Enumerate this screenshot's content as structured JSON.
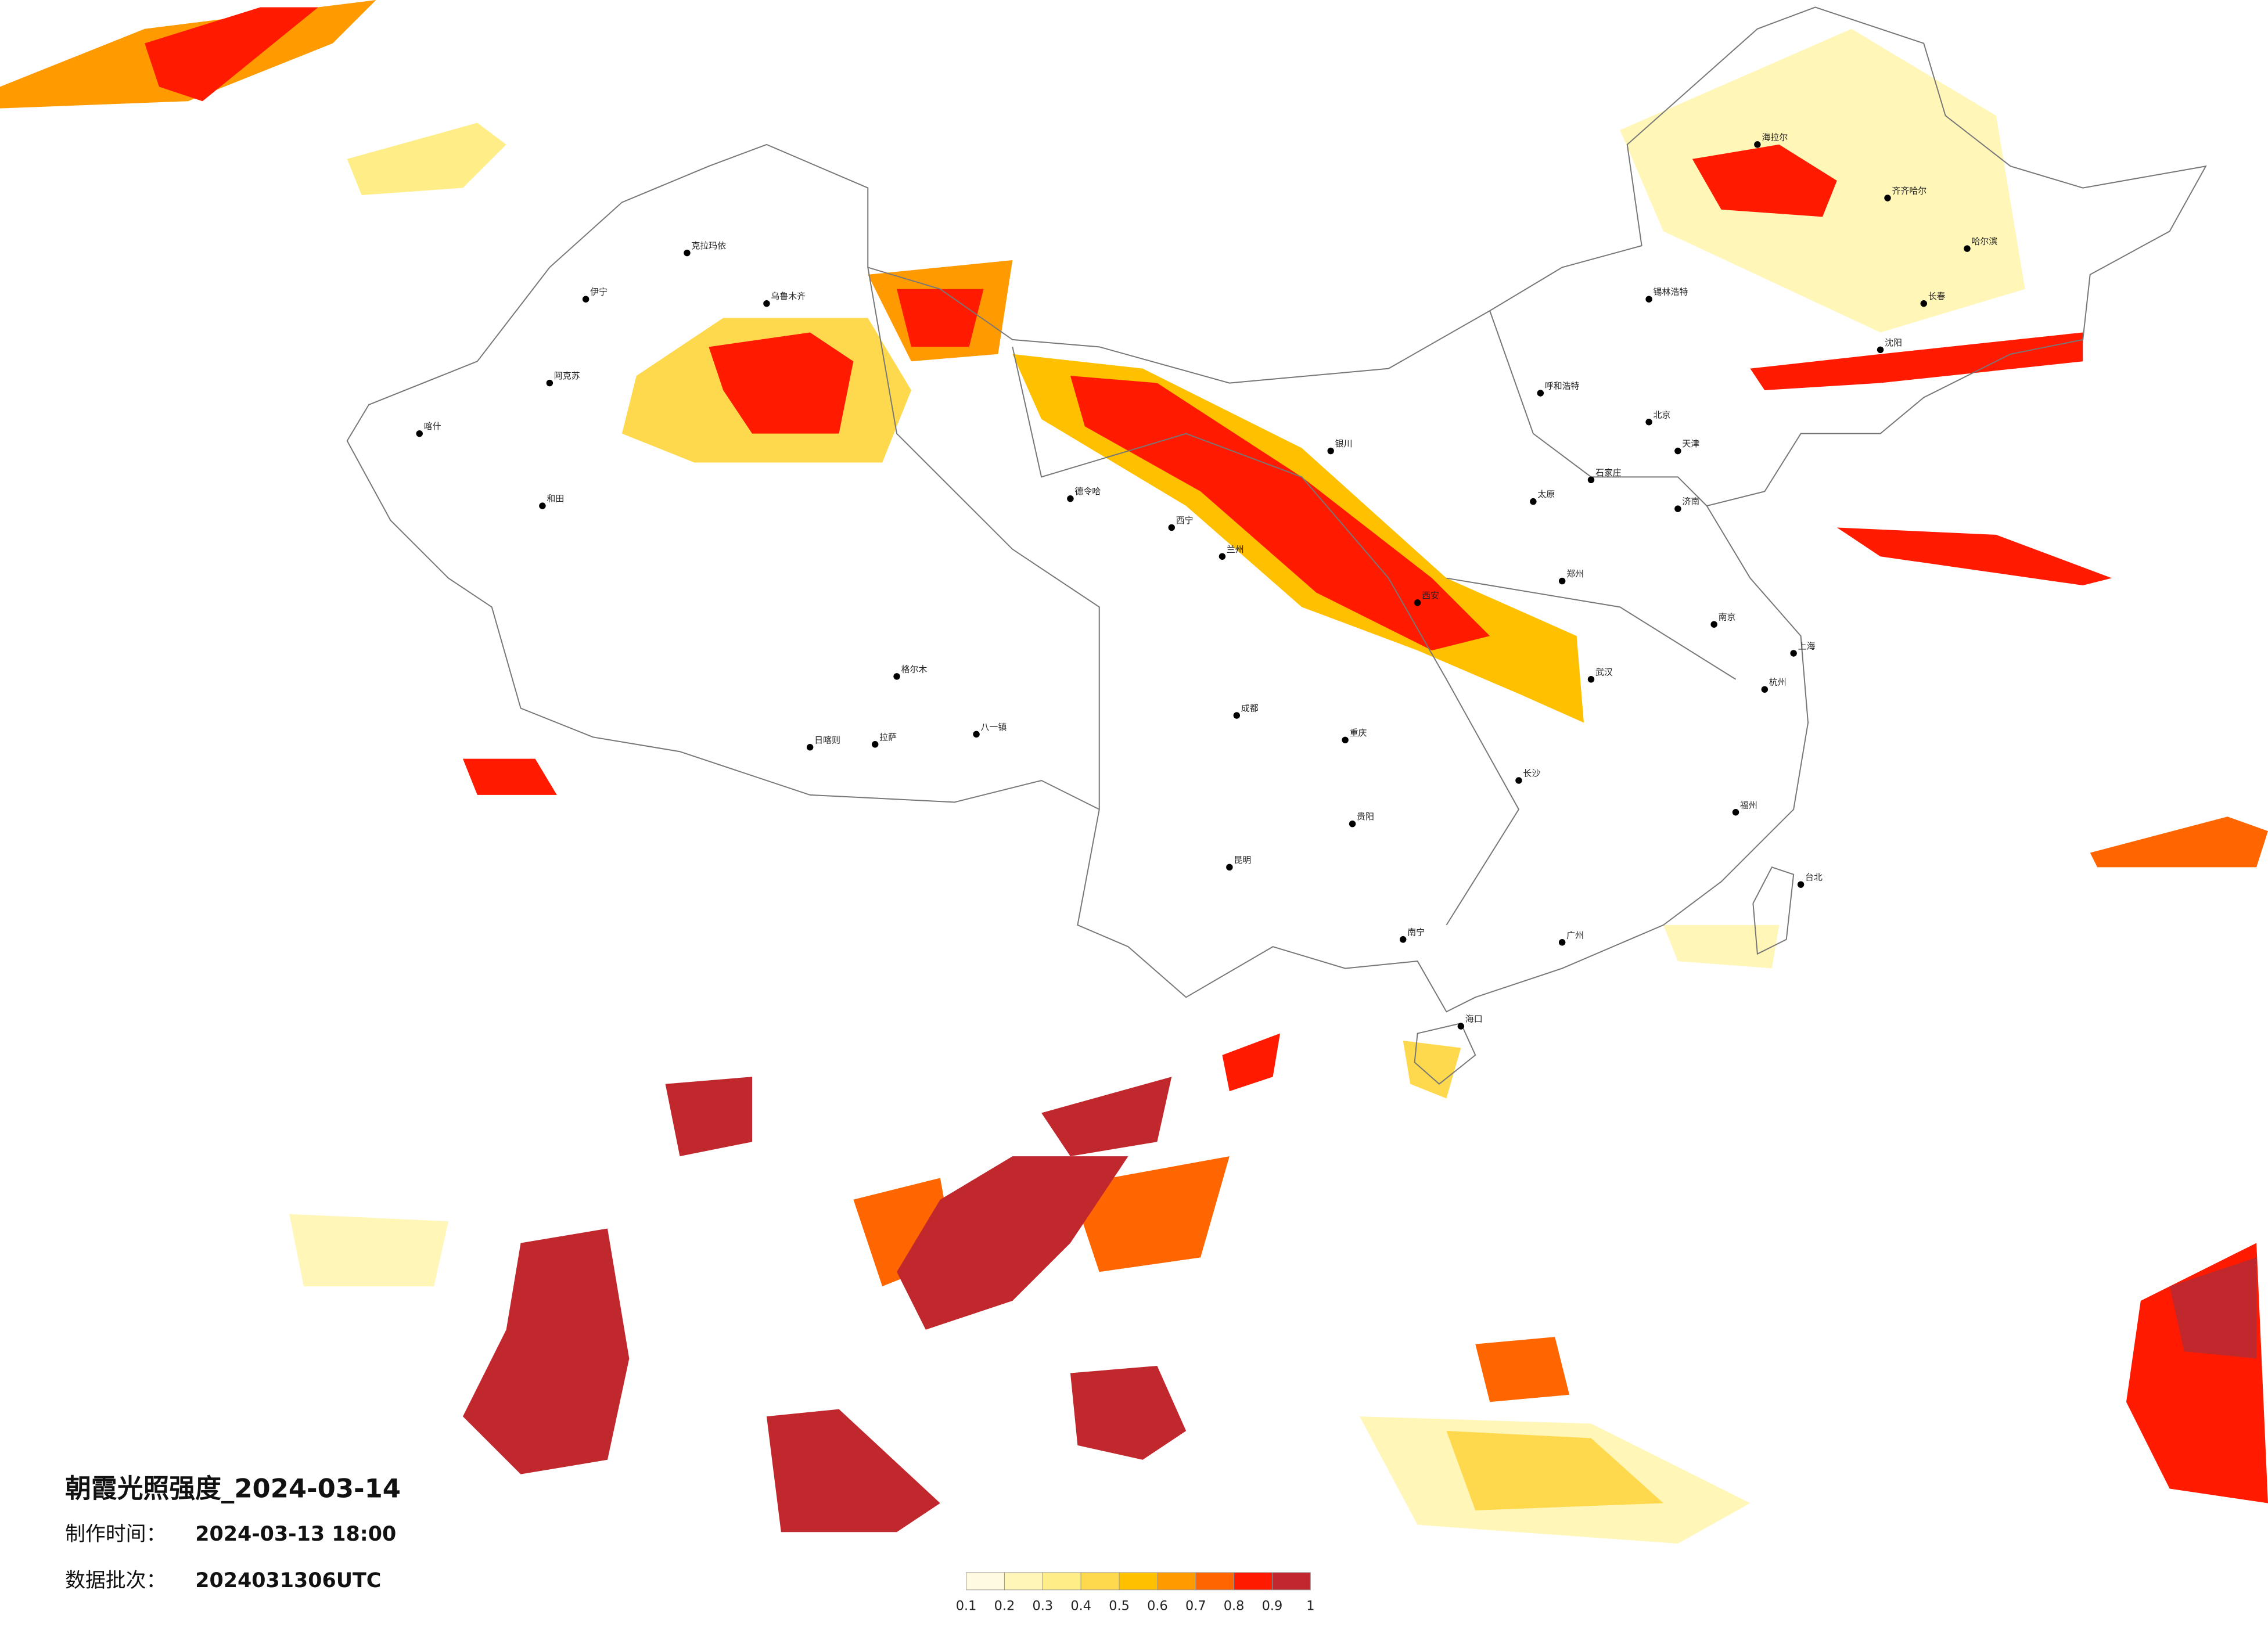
{
  "title": "朝霞光照强度_2024-03-14",
  "meta": [
    {
      "label": "制作时间：",
      "value": "2024-03-13 18:00"
    },
    {
      "label": "数据批次：",
      "value": "2024031306UTC"
    }
  ],
  "legend": {
    "ticks": [
      0.1,
      0.2,
      0.3,
      0.4,
      0.5,
      0.6,
      0.7,
      0.8,
      0.9,
      1
    ],
    "colors": [
      "#fffbe0",
      "#fff6b8",
      "#ffee88",
      "#ffd94d",
      "#ffc000",
      "#ff9a00",
      "#ff6600",
      "#ff1a00",
      "#c0282d"
    ]
  },
  "cities": [
    "克拉玛依",
    "伊宁",
    "乌鲁木齐",
    "阿克苏",
    "喀什",
    "和田",
    "德令哈",
    "格尔木",
    "拉萨",
    "日喀则",
    "八一镇",
    "西宁",
    "兰州",
    "银川",
    "呼和浩特",
    "北京",
    "天津",
    "石家庄",
    "太原",
    "济南",
    "郑州",
    "西安",
    "成都",
    "重庆",
    "贵阳",
    "昆明",
    "南宁",
    "长沙",
    "武汉",
    "南京",
    "上海",
    "杭州",
    "福州",
    "广州",
    "海口",
    "哈尔滨",
    "长春",
    "沈阳",
    "台北",
    "齐齐哈尔",
    "海拉尔",
    "锡林浩特"
  ]
}
